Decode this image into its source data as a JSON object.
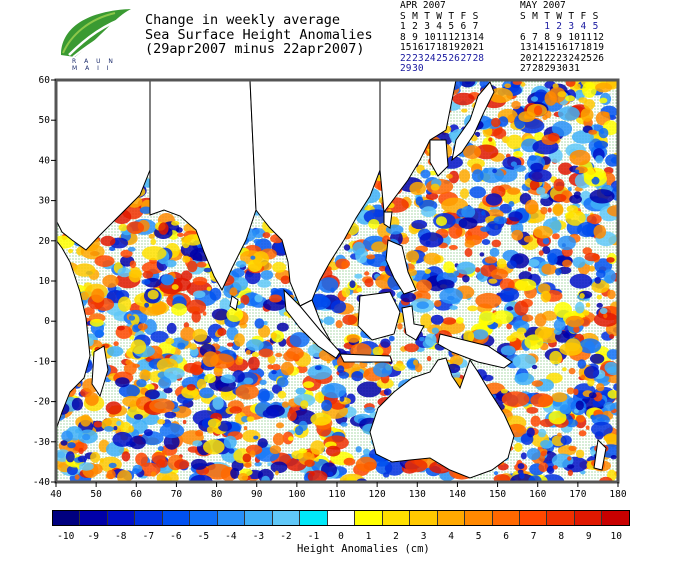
{
  "title": {
    "line1": "Change in weekly average",
    "line2": "Sea Surface Height Anomalies",
    "line3": "(29apr2007 minus 22apr2007)"
  },
  "logo": {
    "text_line1": "R A U N",
    "text_line2": "M A I I",
    "colors": [
      "#2d8a2d",
      "#79b83a",
      "#1a2a6a"
    ]
  },
  "calendars": [
    {
      "header": "APR 2007",
      "days": [
        "S",
        "M",
        "T",
        "W",
        "T",
        "F",
        "S"
      ],
      "weeks": [
        [
          "1",
          "2",
          "3",
          "4",
          "5",
          "6",
          "7"
        ],
        [
          "8",
          "9",
          "10",
          "11",
          "12",
          "13",
          "14"
        ],
        [
          "15",
          "16",
          "17",
          "18",
          "19",
          "20",
          "21"
        ],
        [
          "22",
          "23",
          "24",
          "25",
          "26",
          "27",
          "28"
        ],
        [
          "29",
          "30",
          "",
          "",
          "",
          "",
          ""
        ]
      ],
      "highlight_weeks": [
        3,
        4
      ]
    },
    {
      "header": "MAY 2007",
      "days": [
        "S",
        "M",
        "T",
        "W",
        "T",
        "F",
        "S"
      ],
      "weeks": [
        [
          "",
          "",
          "1",
          "2",
          "3",
          "4",
          "5"
        ],
        [
          "6",
          "7",
          "8",
          "9",
          "10",
          "11",
          "12"
        ],
        [
          "13",
          "14",
          "15",
          "16",
          "17",
          "18",
          "19"
        ],
        [
          "20",
          "21",
          "22",
          "23",
          "24",
          "25",
          "26"
        ],
        [
          "27",
          "28",
          "29",
          "30",
          "31",
          "",
          ""
        ]
      ],
      "highlight_weeks": [
        0
      ]
    }
  ],
  "map": {
    "lat_ticks": [
      "60",
      "50",
      "40",
      "30",
      "20",
      "10",
      "0",
      "-10",
      "-20",
      "-30",
      "-40"
    ],
    "lon_ticks": [
      "40",
      "50",
      "60",
      "70",
      "80",
      "90",
      "100",
      "110",
      "120",
      "130",
      "140",
      "150",
      "160",
      "170",
      "180"
    ],
    "lon_range": [
      40,
      180
    ],
    "lat_range": [
      -40,
      60
    ]
  },
  "colorbar": {
    "label": "Height Anomalies (cm)",
    "ticks": [
      "-10",
      "-9",
      "-8",
      "-7",
      "-6",
      "-5",
      "-4",
      "-3",
      "-2",
      "-1",
      "0",
      "1",
      "2",
      "3",
      "4",
      "5",
      "6",
      "7",
      "8",
      "9",
      "10"
    ],
    "colors": [
      "#000080",
      "#0000a8",
      "#0010c8",
      "#0030e0",
      "#0050f0",
      "#1070f8",
      "#2890f8",
      "#40b0f8",
      "#60c8f8",
      "#00e8f8",
      "#ffffff",
      "#ffff00",
      "#ffe000",
      "#ffc800",
      "#ffa800",
      "#ff8800",
      "#ff6800",
      "#ff4800",
      "#f03000",
      "#e01800",
      "#c80000"
    ]
  }
}
